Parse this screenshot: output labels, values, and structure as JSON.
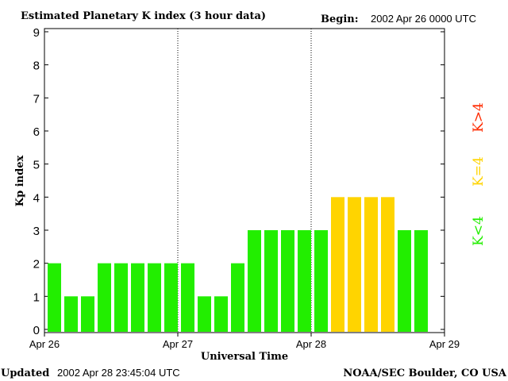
{
  "header": {
    "title": "Estimated Planetary K index (3 hour data)",
    "begin_label": "Begin:",
    "begin_value": "2002 Apr 26 0000 UTC"
  },
  "footer": {
    "updated_label": "Updated",
    "updated_value": "2002 Apr 28 23:45:04 UTC",
    "credit": "NOAA/SEC Boulder, CO USA"
  },
  "legend": {
    "high": {
      "label": "K>4",
      "color": "#ff2a00"
    },
    "equal": {
      "label": "K=4",
      "color": "#ffd400"
    },
    "low": {
      "label": "K<4",
      "color": "#22ee00"
    }
  },
  "chart_data": {
    "type": "bar",
    "title": "Estimated Planetary K index (3 hour data)",
    "xlabel": "Universal Time",
    "ylabel": "Kp index",
    "ylim": [
      0,
      9
    ],
    "yticks": [
      "0",
      "1",
      "2",
      "3",
      "4",
      "5",
      "6",
      "7",
      "8",
      "9"
    ],
    "xlim": [
      "2002-04-26 00:00",
      "2002-04-29 00:00"
    ],
    "xticks": [
      "Apr 26",
      "Apr 27",
      "Apr 28",
      "Apr 29"
    ],
    "day_dividers": [
      "Apr 27",
      "Apr 28"
    ],
    "bar_interval": "3 hours",
    "values": [
      2,
      1,
      1,
      2,
      2,
      2,
      2,
      2,
      2,
      1,
      1,
      2,
      3,
      3,
      3,
      3,
      3,
      4,
      4,
      4,
      4,
      3,
      3
    ],
    "colors": {
      "below_4": "#22ee00",
      "equal_4": "#ffd400",
      "above_4": "#ff2a00"
    },
    "grid": false
  }
}
